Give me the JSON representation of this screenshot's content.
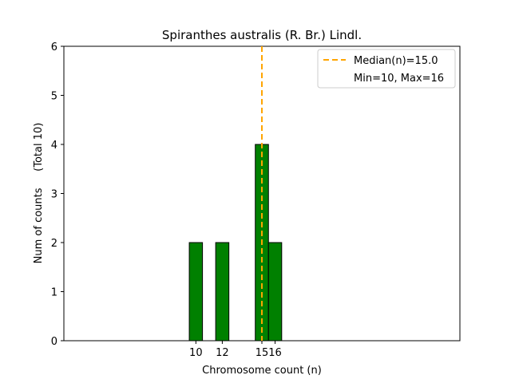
{
  "chart_data": {
    "type": "bar",
    "title": "Spiranthes australis (R. Br.) Lindl.",
    "xlabel": "Chromosome count (n)",
    "ylabel": "Num of counts     (Total 10)",
    "x": [
      10,
      12,
      15,
      16
    ],
    "values": [
      2,
      2,
      4,
      2
    ],
    "x_ticks": [
      "10",
      "12",
      "15",
      "16"
    ],
    "y_ticks": [
      "0",
      "1",
      "2",
      "3",
      "4",
      "5",
      "6"
    ],
    "xlim": [
      0,
      30
    ],
    "ylim": [
      0,
      6
    ],
    "bar_color": "#008000",
    "median_line": {
      "value": 15.0,
      "color": "#FFA500",
      "label": "Median(n)=15.0"
    },
    "legend": {
      "placement": "top-right",
      "entries": [
        "Median(n)=15.0",
        "Min=10, Max=16"
      ]
    },
    "grid": false
  }
}
